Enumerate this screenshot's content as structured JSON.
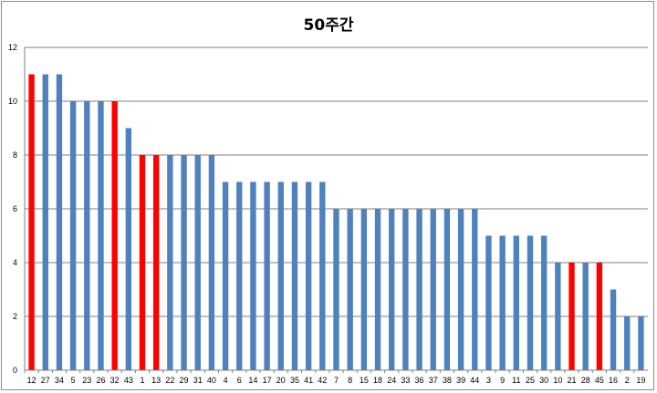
{
  "chart_data": {
    "type": "bar",
    "title": "50주간",
    "xlabel": "",
    "ylabel": "",
    "ylim": [
      0,
      12
    ],
    "y_ticks": [
      0,
      2,
      4,
      6,
      8,
      10,
      12
    ],
    "grid": true,
    "legend": "none",
    "categories": [
      "12",
      "27",
      "34",
      "5",
      "23",
      "26",
      "32",
      "43",
      "1",
      "13",
      "22",
      "29",
      "31",
      "40",
      "4",
      "6",
      "14",
      "17",
      "20",
      "35",
      "41",
      "42",
      "7",
      "8",
      "15",
      "18",
      "24",
      "33",
      "36",
      "37",
      "38",
      "39",
      "44",
      "3",
      "9",
      "11",
      "25",
      "30",
      "10",
      "21",
      "28",
      "45",
      "16",
      "2",
      "19"
    ],
    "values": [
      11,
      11,
      11,
      10,
      10,
      10,
      10,
      9,
      8,
      8,
      8,
      8,
      8,
      8,
      7,
      7,
      7,
      7,
      7,
      7,
      7,
      7,
      6,
      6,
      6,
      6,
      6,
      6,
      6,
      6,
      6,
      6,
      6,
      5,
      5,
      5,
      5,
      5,
      4,
      4,
      4,
      4,
      3,
      2,
      2
    ],
    "highlighted_categories": [
      "12",
      "32",
      "1",
      "13",
      "21",
      "45"
    ],
    "colors": {
      "default": "#4f81bd",
      "highlight": "#ff0000",
      "grid": "#7f7f7f",
      "axis": "#7f7f7f"
    }
  }
}
